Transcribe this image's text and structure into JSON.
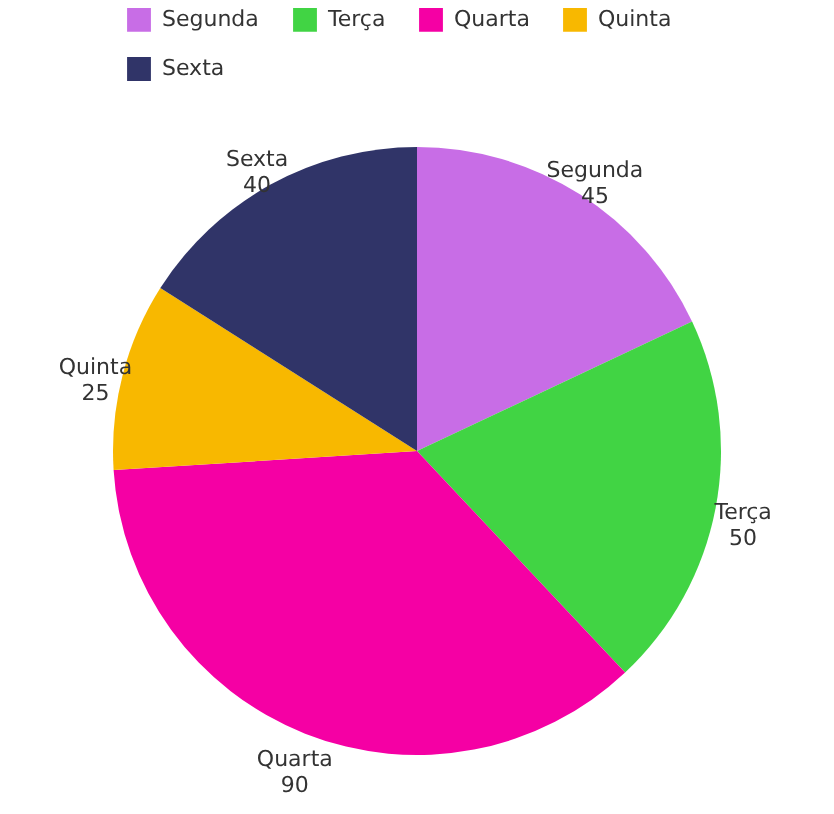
{
  "chart_data": {
    "type": "pie",
    "categories": [
      "Segunda",
      "Terça",
      "Quarta",
      "Quinta",
      "Sexta"
    ],
    "values": [
      45,
      50,
      90,
      25,
      40
    ],
    "colors": [
      "#c86de6",
      "#41d444",
      "#f500a4",
      "#f8b800",
      "#303468"
    ],
    "data_labels": true,
    "legend": "top"
  }
}
